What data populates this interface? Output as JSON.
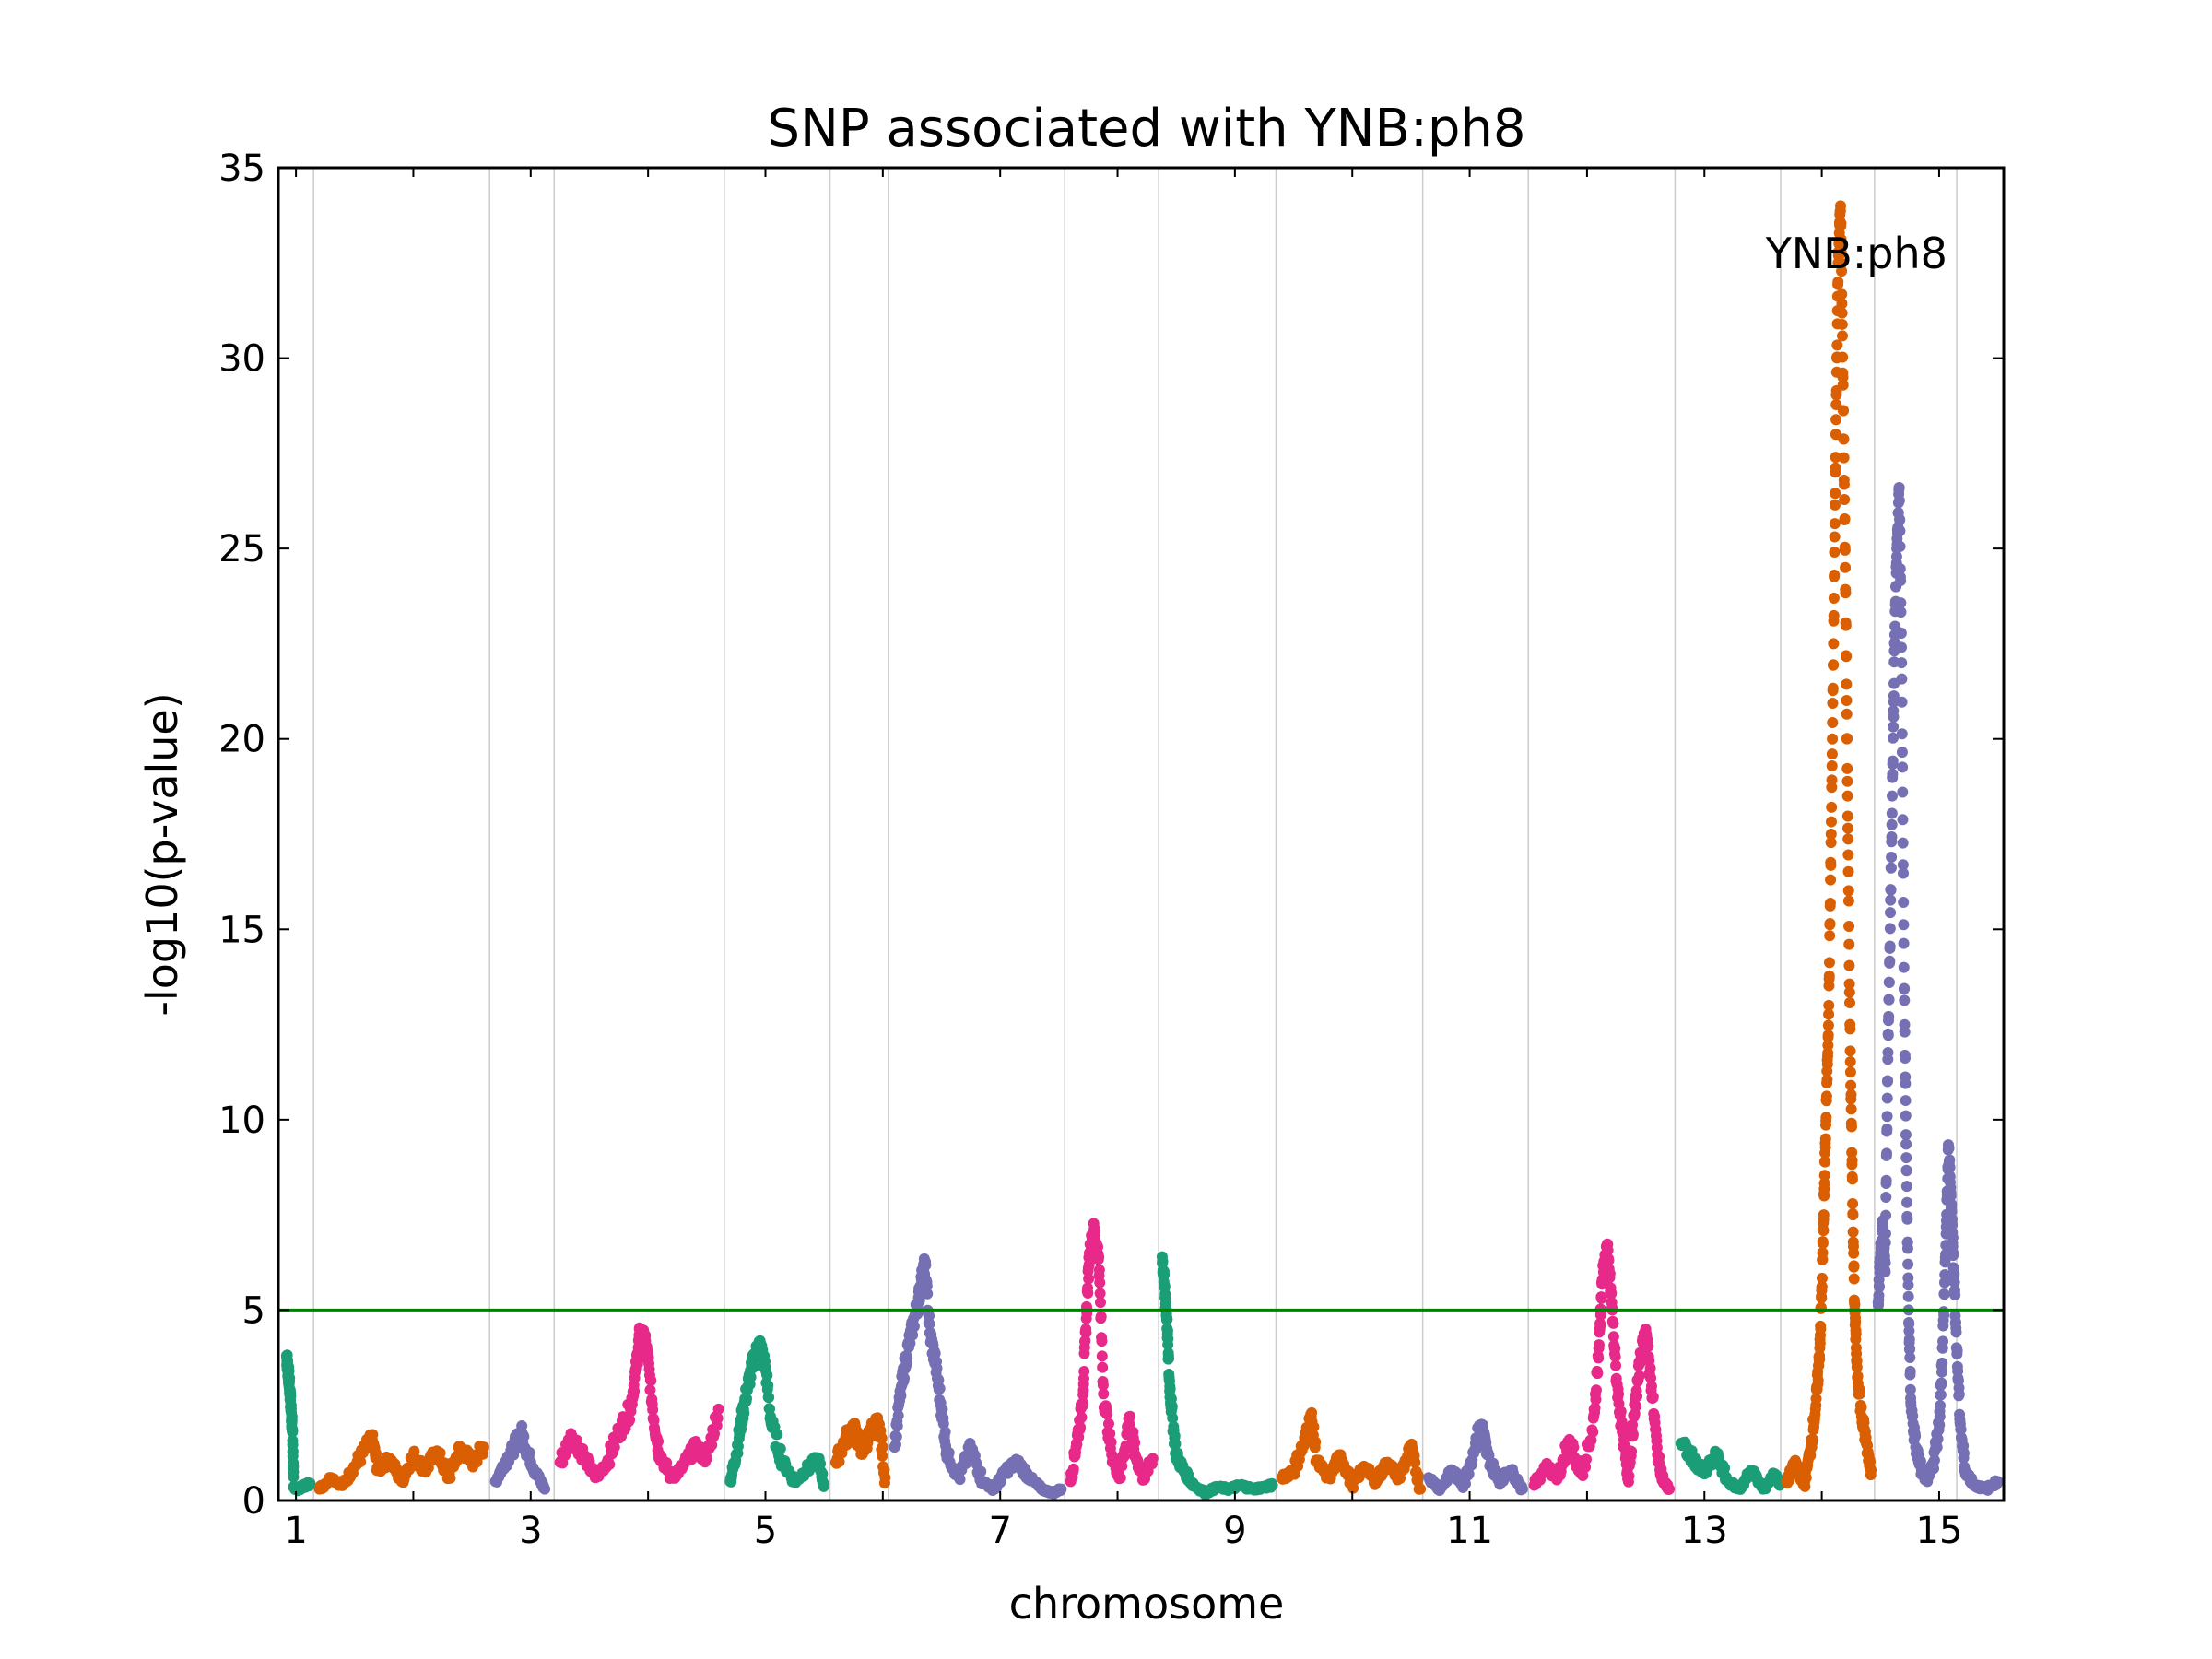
{
  "chart_data": {
    "type": "scatter",
    "title": "SNP associated with YNB:ph8",
    "xlabel": "chromosome",
    "ylabel": "-log10(p-value)",
    "ylim": [
      0,
      35
    ],
    "yticks": [
      0,
      5,
      10,
      15,
      20,
      25,
      30,
      35
    ],
    "xlim": [
      0.85,
      15.55
    ],
    "xticks": [
      1,
      3,
      5,
      7,
      9,
      11,
      13,
      15
    ],
    "chromosome_boundaries": [
      1.15,
      2.65,
      3.2,
      4.65,
      5.55,
      6.05,
      7.55,
      8.35,
      9.35,
      10.6,
      11.5,
      12.75,
      13.65,
      14.45,
      15.15
    ],
    "threshold": {
      "value": 5,
      "color": "#008000"
    },
    "grid": "vertical lines at chromosome boundaries",
    "annotation": {
      "text": "YNB:ph8",
      "x": 14.15,
      "y": 32.6
    },
    "colors": [
      "#1b9e77",
      "#d95f02",
      "#7570b3",
      "#e7298a"
    ],
    "series": [
      {
        "chromosome": 1,
        "color": "#1b9e77",
        "points": [
          [
            0.92,
            3.8
          ],
          [
            0.93,
            3.5
          ],
          [
            0.94,
            3.2
          ],
          [
            0.95,
            2.8
          ],
          [
            0.96,
            2.3
          ],
          [
            0.97,
            1.8
          ],
          [
            0.98,
            0.35
          ],
          [
            1.02,
            0.3
          ],
          [
            1.08,
            0.4
          ],
          [
            1.12,
            0.45
          ]
        ]
      },
      {
        "chromosome": 2,
        "color": "#d95f02",
        "points": [
          [
            1.2,
            0.3
          ],
          [
            1.3,
            0.6
          ],
          [
            1.4,
            0.4
          ],
          [
            1.5,
            0.9
          ],
          [
            1.6,
            1.4
          ],
          [
            1.65,
            1.6
          ],
          [
            1.7,
            0.8
          ],
          [
            1.8,
            1.1
          ],
          [
            1.9,
            0.5
          ],
          [
            2.0,
            1.2
          ],
          [
            2.1,
            0.8
          ],
          [
            2.2,
            1.3
          ],
          [
            2.3,
            0.6
          ],
          [
            2.4,
            1.4
          ],
          [
            2.5,
            1.0
          ],
          [
            2.6,
            1.4
          ]
        ]
      },
      {
        "chromosome": 3,
        "color": "#7570b3",
        "points": [
          [
            2.7,
            0.5
          ],
          [
            2.78,
            1.0
          ],
          [
            2.86,
            1.4
          ],
          [
            2.92,
            1.8
          ],
          [
            2.98,
            1.2
          ],
          [
            3.05,
            0.7
          ],
          [
            3.12,
            0.3
          ]
        ]
      },
      {
        "chromosome": 4,
        "color": "#e7298a",
        "points": [
          [
            3.25,
            1.0
          ],
          [
            3.35,
            1.7
          ],
          [
            3.45,
            1.2
          ],
          [
            3.55,
            0.6
          ],
          [
            3.65,
            1.0
          ],
          [
            3.75,
            1.8
          ],
          [
            3.85,
            2.4
          ],
          [
            3.9,
            3.5
          ],
          [
            3.93,
            4.4
          ],
          [
            3.97,
            4.2
          ],
          [
            4.0,
            3.7
          ],
          [
            4.05,
            2.1
          ],
          [
            4.1,
            1.2
          ],
          [
            4.2,
            0.6
          ],
          [
            4.3,
            0.9
          ],
          [
            4.4,
            1.4
          ],
          [
            4.5,
            1.1
          ],
          [
            4.6,
            2.4
          ]
        ]
      },
      {
        "chromosome": 5,
        "color": "#1b9e77",
        "points": [
          [
            4.7,
            0.5
          ],
          [
            4.75,
            1.2
          ],
          [
            4.8,
            2.2
          ],
          [
            4.85,
            3.0
          ],
          [
            4.9,
            3.7
          ],
          [
            4.95,
            4.1
          ],
          [
            5.0,
            3.5
          ],
          [
            5.05,
            2.0
          ],
          [
            5.15,
            1.0
          ],
          [
            5.25,
            0.5
          ],
          [
            5.35,
            0.8
          ],
          [
            5.45,
            1.1
          ],
          [
            5.5,
            0.4
          ]
        ]
      },
      {
        "chromosome": 6,
        "color": "#d95f02",
        "points": [
          [
            5.6,
            1.0
          ],
          [
            5.68,
            1.6
          ],
          [
            5.75,
            1.9
          ],
          [
            5.82,
            1.3
          ],
          [
            5.9,
            1.8
          ],
          [
            5.97,
            2.0
          ],
          [
            6.02,
            0.6
          ]
        ]
      },
      {
        "chromosome": 7,
        "color": "#7570b3",
        "points": [
          [
            6.1,
            1.4
          ],
          [
            6.15,
            2.8
          ],
          [
            6.2,
            3.8
          ],
          [
            6.25,
            4.5
          ],
          [
            6.3,
            5.2
          ],
          [
            6.33,
            5.8
          ],
          [
            6.36,
            6.2
          ],
          [
            6.4,
            4.4
          ],
          [
            6.45,
            3.6
          ],
          [
            6.5,
            2.4
          ],
          [
            6.55,
            1.2
          ],
          [
            6.65,
            0.6
          ],
          [
            6.75,
            1.4
          ],
          [
            6.85,
            0.5
          ],
          [
            6.95,
            0.3
          ],
          [
            7.05,
            0.8
          ],
          [
            7.15,
            1.0
          ],
          [
            7.25,
            0.6
          ],
          [
            7.35,
            0.3
          ],
          [
            7.45,
            0.2
          ],
          [
            7.52,
            0.3
          ]
        ]
      },
      {
        "chromosome": 8,
        "color": "#e7298a",
        "points": [
          [
            7.6,
            0.5
          ],
          [
            7.65,
            1.5
          ],
          [
            7.7,
            2.5
          ],
          [
            7.73,
            4.5
          ],
          [
            7.76,
            6.5
          ],
          [
            7.8,
            7.1
          ],
          [
            7.84,
            6.4
          ],
          [
            7.88,
            2.8
          ],
          [
            7.95,
            1.2
          ],
          [
            8.02,
            0.6
          ],
          [
            8.1,
            2.2
          ],
          [
            8.15,
            1.2
          ],
          [
            8.22,
            0.6
          ],
          [
            8.3,
            1.1
          ]
        ]
      },
      {
        "chromosome": 9,
        "color": "#1b9e77",
        "points": [
          [
            8.38,
            6.4
          ],
          [
            8.4,
            5.6
          ],
          [
            8.42,
            4.8
          ],
          [
            8.44,
            3.2
          ],
          [
            8.46,
            2.4
          ],
          [
            8.5,
            1.2
          ],
          [
            8.56,
            0.8
          ],
          [
            8.65,
            0.4
          ],
          [
            8.75,
            0.2
          ],
          [
            8.85,
            0.35
          ],
          [
            8.95,
            0.3
          ],
          [
            9.05,
            0.4
          ],
          [
            9.15,
            0.3
          ],
          [
            9.25,
            0.35
          ],
          [
            9.32,
            0.4
          ]
        ]
      },
      {
        "chromosome": 10,
        "color": "#d95f02",
        "points": [
          [
            9.4,
            0.6
          ],
          [
            9.5,
            0.8
          ],
          [
            9.6,
            1.6
          ],
          [
            9.65,
            2.2
          ],
          [
            9.7,
            1.0
          ],
          [
            9.8,
            0.6
          ],
          [
            9.9,
            1.2
          ],
          [
            10.0,
            0.4
          ],
          [
            10.1,
            0.9
          ],
          [
            10.2,
            0.5
          ],
          [
            10.3,
            1.0
          ],
          [
            10.4,
            0.6
          ],
          [
            10.5,
            1.4
          ],
          [
            10.58,
            0.3
          ]
        ]
      },
      {
        "chromosome": 11,
        "color": "#7570b3",
        "points": [
          [
            10.65,
            0.6
          ],
          [
            10.75,
            0.3
          ],
          [
            10.85,
            0.8
          ],
          [
            10.95,
            0.4
          ],
          [
            11.05,
            1.5
          ],
          [
            11.1,
            2.0
          ],
          [
            11.15,
            1.2
          ],
          [
            11.25,
            0.5
          ],
          [
            11.35,
            0.8
          ],
          [
            11.45,
            0.3
          ]
        ]
      },
      {
        "chromosome": 12,
        "color": "#e7298a",
        "points": [
          [
            11.55,
            0.4
          ],
          [
            11.65,
            0.9
          ],
          [
            11.75,
            0.6
          ],
          [
            11.85,
            1.6
          ],
          [
            11.95,
            0.7
          ],
          [
            12.05,
            1.8
          ],
          [
            12.1,
            4.0
          ],
          [
            12.13,
            5.8
          ],
          [
            12.17,
            6.7
          ],
          [
            12.21,
            5.2
          ],
          [
            12.25,
            3.2
          ],
          [
            12.3,
            1.8
          ],
          [
            12.35,
            0.6
          ],
          [
            12.4,
            2.2
          ],
          [
            12.45,
            3.6
          ],
          [
            12.5,
            4.5
          ],
          [
            12.55,
            3.0
          ],
          [
            12.6,
            1.2
          ],
          [
            12.65,
            0.5
          ],
          [
            12.7,
            0.3
          ]
        ]
      },
      {
        "chromosome": 13,
        "color": "#1b9e77",
        "points": [
          [
            12.8,
            1.5
          ],
          [
            12.9,
            1.1
          ],
          [
            13.0,
            0.7
          ],
          [
            13.1,
            1.2
          ],
          [
            13.2,
            0.5
          ],
          [
            13.3,
            0.3
          ],
          [
            13.4,
            0.8
          ],
          [
            13.5,
            0.3
          ],
          [
            13.6,
            0.7
          ],
          [
            13.64,
            0.4
          ]
        ]
      },
      {
        "chromosome": 14,
        "color": "#d95f02",
        "points": [
          [
            13.7,
            0.5
          ],
          [
            13.78,
            1.0
          ],
          [
            13.85,
            0.4
          ],
          [
            13.9,
            1.3
          ],
          [
            13.95,
            2.5
          ],
          [
            13.98,
            3.8
          ],
          [
            14.0,
            5.6
          ],
          [
            14.02,
            8.0
          ],
          [
            14.04,
            10.5
          ],
          [
            14.06,
            13.0
          ],
          [
            14.08,
            17.5
          ],
          [
            14.1,
            22.5
          ],
          [
            14.12,
            28.0
          ],
          [
            14.14,
            32.5
          ],
          [
            14.16,
            34.0
          ],
          [
            14.18,
            29.5
          ],
          [
            14.2,
            24.5
          ],
          [
            14.22,
            18.5
          ],
          [
            14.24,
            12.5
          ],
          [
            14.26,
            8.5
          ],
          [
            14.28,
            5.0
          ],
          [
            14.3,
            3.5
          ],
          [
            14.34,
            2.2
          ],
          [
            14.38,
            1.5
          ],
          [
            14.42,
            0.8
          ]
        ]
      },
      {
        "chromosome": 15,
        "color": "#7570b3",
        "points": [
          [
            14.48,
            5.2
          ],
          [
            14.5,
            6.5
          ],
          [
            14.52,
            7.2
          ],
          [
            14.54,
            6.0
          ],
          [
            14.56,
            11.0
          ],
          [
            14.58,
            14.5
          ],
          [
            14.6,
            18.5
          ],
          [
            14.62,
            22.5
          ],
          [
            14.64,
            25.0
          ],
          [
            14.66,
            26.6
          ],
          [
            14.68,
            22.0
          ],
          [
            14.7,
            14.0
          ],
          [
            14.72,
            9.0
          ],
          [
            14.74,
            5.0
          ],
          [
            14.76,
            2.5
          ],
          [
            14.8,
            1.4
          ],
          [
            14.85,
            0.8
          ],
          [
            14.9,
            0.5
          ],
          [
            14.95,
            1.0
          ],
          [
            15.0,
            2.0
          ],
          [
            15.03,
            4.0
          ],
          [
            15.06,
            7.0
          ],
          [
            15.08,
            9.3
          ],
          [
            15.1,
            8.0
          ],
          [
            15.12,
            6.5
          ],
          [
            15.15,
            4.0
          ],
          [
            15.18,
            2.0
          ],
          [
            15.22,
            0.8
          ],
          [
            15.3,
            0.4
          ],
          [
            15.4,
            0.3
          ],
          [
            15.5,
            0.5
          ]
        ]
      }
    ]
  }
}
